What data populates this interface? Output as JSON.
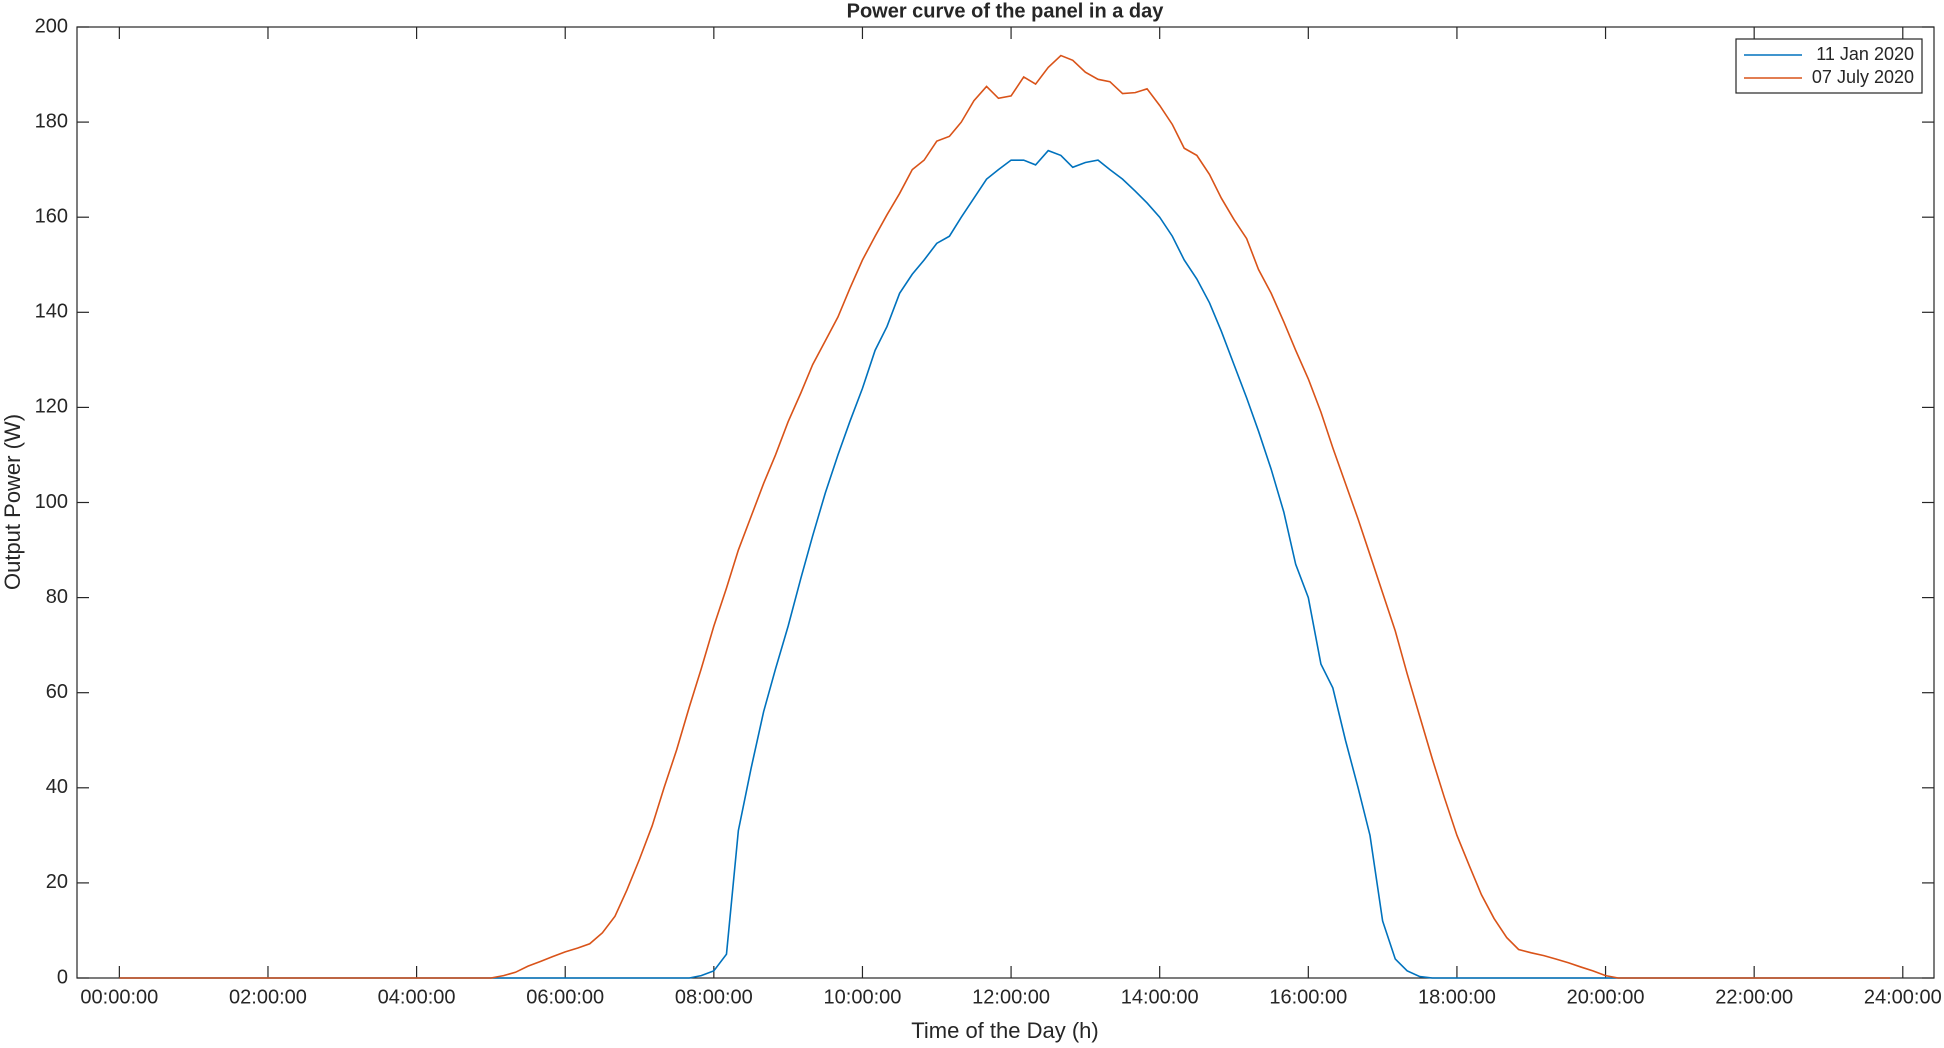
{
  "chart_data": {
    "type": "line",
    "title": "Power curve of the panel in a day",
    "x_label": "Time of the Day (h)",
    "y_label": "Output Power (W)",
    "x": [
      0,
      1,
      2,
      3,
      4,
      5,
      5.17,
      5.33,
      5.5,
      5.67,
      5.83,
      6,
      6.17,
      6.33,
      6.5,
      6.67,
      6.83,
      7,
      7.17,
      7.33,
      7.5,
      7.67,
      7.83,
      8,
      8.17,
      8.33,
      8.5,
      8.67,
      8.83,
      9,
      9.17,
      9.33,
      9.5,
      9.67,
      9.83,
      10,
      10.17,
      10.33,
      10.5,
      10.67,
      10.83,
      11,
      11.17,
      11.33,
      11.5,
      11.67,
      11.83,
      12,
      12.17,
      12.33,
      12.5,
      12.67,
      12.83,
      13,
      13.17,
      13.33,
      13.5,
      13.67,
      13.83,
      14,
      14.17,
      14.33,
      14.5,
      14.67,
      14.83,
      15,
      15.17,
      15.33,
      15.5,
      15.67,
      15.83,
      16,
      16.17,
      16.33,
      16.5,
      16.67,
      16.83,
      17,
      17.17,
      17.33,
      17.5,
      17.67,
      17.83,
      18,
      18.17,
      18.33,
      18.5,
      18.67,
      18.83,
      19,
      19.17,
      19.33,
      19.5,
      19.67,
      19.83,
      20,
      20.17,
      21,
      22,
      23,
      23.83
    ],
    "series": [
      {
        "name": "11 Jan 2020",
        "color": "#0072bd",
        "values": [
          0,
          0,
          0,
          0,
          0,
          0,
          0,
          0,
          0,
          0,
          0,
          0,
          0,
          0,
          0,
          0,
          0,
          0,
          0,
          0,
          0,
          0,
          0.5,
          1.5,
          5,
          31,
          44,
          56,
          65,
          74,
          84,
          93,
          102,
          110,
          117,
          124,
          132,
          137,
          144,
          148,
          151,
          154.5,
          156,
          160,
          164,
          168,
          170,
          172,
          172,
          171,
          174,
          173,
          170.5,
          171.5,
          172,
          170,
          168,
          165.5,
          163,
          160,
          156,
          151,
          147,
          142,
          136,
          129,
          122,
          115,
          107,
          98,
          87,
          80,
          66,
          61,
          50,
          40,
          30,
          12,
          4,
          1.5,
          0.3,
          0,
          0,
          0,
          0,
          0,
          0,
          0,
          0,
          0,
          0,
          0,
          0,
          0,
          0,
          0,
          0,
          0,
          0,
          0,
          0
        ]
      },
      {
        "name": "07 July 2020",
        "color": "#d95319",
        "values": [
          0,
          0,
          0,
          0,
          0,
          0,
          0.5,
          1.2,
          2.5,
          3.5,
          4.5,
          5.5,
          6.3,
          7.2,
          9.5,
          13,
          18.5,
          25,
          32,
          40,
          48,
          57,
          65,
          74,
          82,
          90,
          97,
          104,
          110,
          117,
          123,
          129,
          134,
          139,
          145,
          151,
          156,
          160.5,
          165,
          170,
          172,
          176,
          177,
          180,
          184.5,
          187.5,
          185,
          185.5,
          189.5,
          188,
          191.5,
          194,
          193,
          190.5,
          189,
          188.5,
          186,
          186.2,
          187,
          183.5,
          179.5,
          174.5,
          173,
          169,
          164,
          159.5,
          155.5,
          149,
          144,
          138,
          132,
          126,
          119,
          111.5,
          104,
          96.5,
          89,
          81,
          73,
          64,
          55,
          46,
          38,
          30,
          23.5,
          17.5,
          12.5,
          8.5,
          6,
          5.3,
          4.7,
          4,
          3.2,
          2.3,
          1.5,
          0.5,
          0,
          0,
          0,
          0,
          0
        ]
      }
    ],
    "xlim": [
      -0.57,
      24.42
    ],
    "xticks": [
      {
        "value": 0,
        "label": "00:00:00"
      },
      {
        "value": 2,
        "label": "02:00:00"
      },
      {
        "value": 4,
        "label": "04:00:00"
      },
      {
        "value": 6,
        "label": "06:00:00"
      },
      {
        "value": 8,
        "label": "08:00:00"
      },
      {
        "value": 10,
        "label": "10:00:00"
      },
      {
        "value": 12,
        "label": "12:00:00"
      },
      {
        "value": 14,
        "label": "14:00:00"
      },
      {
        "value": 16,
        "label": "16:00:00"
      },
      {
        "value": 18,
        "label": "18:00:00"
      },
      {
        "value": 20,
        "label": "20:00:00"
      },
      {
        "value": 22,
        "label": "22:00:00"
      },
      {
        "value": 24,
        "label": "24:00:00"
      }
    ],
    "ylim": [
      0,
      200
    ],
    "yticks": [
      0,
      20,
      40,
      60,
      80,
      100,
      120,
      140,
      160,
      180,
      200
    ],
    "grid": false,
    "legend": "northeast"
  }
}
